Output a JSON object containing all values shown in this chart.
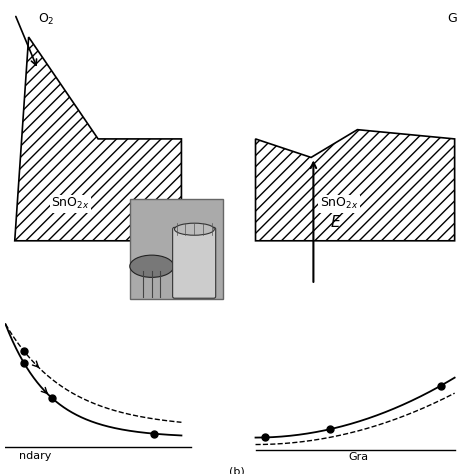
{
  "bg_color": "#ffffff",
  "left_label": "SnO$_{2x}$",
  "right_label": "SnO$_{2x}$",
  "o2_label": "O$_2$",
  "g_label": "G",
  "e_label": "E",
  "bottom_left_label": "ndary",
  "bottom_right_label": "Gra",
  "bottom_note": "(b)"
}
